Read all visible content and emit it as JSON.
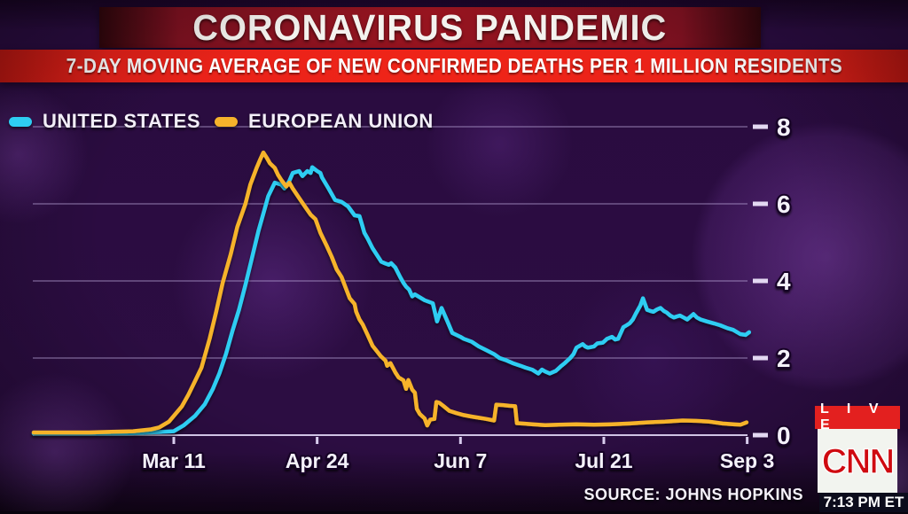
{
  "header": {
    "title": "CORONAVIRUS PANDEMIC",
    "subtitle": "7-DAY MOVING AVERAGE OF NEW CONFIRMED DEATHS PER 1 MILLION RESIDENTS"
  },
  "legend": [
    {
      "label": "UNITED STATES",
      "color": "#2ecdf2"
    },
    {
      "label": "EUROPEAN UNION",
      "color": "#f6b32b"
    }
  ],
  "chart_data": {
    "type": "line",
    "title": "7-day moving average of new confirmed deaths per 1 million residents",
    "x_axis": {
      "note": "x values are days relative to Mar 11",
      "domain_days": [
        -43,
        177
      ],
      "tick_days": [
        0,
        44,
        88,
        132,
        176
      ],
      "tick_labels": [
        "Mar 11",
        "Apr 24",
        "Jun 7",
        "Jul 21",
        "Sep 3"
      ]
    },
    "y_axis": {
      "ticks": [
        0,
        2,
        4,
        6,
        8
      ],
      "range": [
        0,
        8
      ],
      "grid": true
    },
    "legend_position": "top-left",
    "series": [
      {
        "name": "UNITED STATES",
        "color": "#2ecdf2",
        "points": [
          [
            -43,
            0.04
          ],
          [
            -26,
            0.04
          ],
          [
            -12,
            0.05
          ],
          [
            0,
            0.1
          ],
          [
            3,
            0.25
          ],
          [
            6.5,
            0.5
          ],
          [
            9.5,
            0.8
          ],
          [
            12,
            1.2
          ],
          [
            14,
            1.6
          ],
          [
            16,
            2.1
          ],
          [
            18,
            2.7
          ],
          [
            20,
            3.25
          ],
          [
            22,
            3.9
          ],
          [
            24,
            4.6
          ],
          [
            26,
            5.3
          ],
          [
            28,
            5.9
          ],
          [
            29,
            6.2
          ],
          [
            31,
            6.55
          ],
          [
            33,
            6.5
          ],
          [
            34,
            6.4
          ],
          [
            35.5,
            6.6
          ],
          [
            36.5,
            6.8
          ],
          [
            38.5,
            6.85
          ],
          [
            39.5,
            6.72
          ],
          [
            41,
            6.85
          ],
          [
            42,
            6.8
          ],
          [
            42.5,
            6.95
          ],
          [
            44,
            6.85
          ],
          [
            45,
            6.8
          ],
          [
            45.5,
            6.68
          ],
          [
            47.5,
            6.4
          ],
          [
            49.5,
            6.1
          ],
          [
            51.5,
            6.05
          ],
          [
            53.5,
            5.93
          ],
          [
            55.5,
            5.7
          ],
          [
            57,
            5.68
          ],
          [
            57.8,
            5.45
          ],
          [
            58.5,
            5.25
          ],
          [
            59.5,
            5.1
          ],
          [
            61,
            4.85
          ],
          [
            63.7,
            4.5
          ],
          [
            65,
            4.45
          ],
          [
            66,
            4.42
          ],
          [
            66.7,
            4.46
          ],
          [
            68,
            4.35
          ],
          [
            69.5,
            4.1
          ],
          [
            70.5,
            3.95
          ],
          [
            71.3,
            3.85
          ],
          [
            72.2,
            3.78
          ],
          [
            73.2,
            3.6
          ],
          [
            74,
            3.65
          ],
          [
            76,
            3.55
          ],
          [
            77,
            3.5
          ],
          [
            79.5,
            3.42
          ],
          [
            80.8,
            2.95
          ],
          [
            82.2,
            3.3
          ],
          [
            84,
            2.95
          ],
          [
            85.5,
            2.65
          ],
          [
            88,
            2.55
          ],
          [
            89,
            2.5
          ],
          [
            91.5,
            2.42
          ],
          [
            93.6,
            2.3
          ],
          [
            96,
            2.2
          ],
          [
            98.3,
            2.1
          ],
          [
            100,
            2.0
          ],
          [
            101.8,
            1.95
          ],
          [
            104,
            1.87
          ],
          [
            106.4,
            1.8
          ],
          [
            108,
            1.75
          ],
          [
            110,
            1.7
          ],
          [
            111.9,
            1.6
          ],
          [
            113,
            1.7
          ],
          [
            114,
            1.65
          ],
          [
            115.4,
            1.6
          ],
          [
            117.3,
            1.67
          ],
          [
            119,
            1.8
          ],
          [
            120,
            1.87
          ],
          [
            121.7,
            2.0
          ],
          [
            122.7,
            2.1
          ],
          [
            123.6,
            2.27
          ],
          [
            125.5,
            2.36
          ],
          [
            126.3,
            2.3
          ],
          [
            127.1,
            2.27
          ],
          [
            129,
            2.3
          ],
          [
            130,
            2.38
          ],
          [
            131.7,
            2.4
          ],
          [
            133,
            2.5
          ],
          [
            134.5,
            2.55
          ],
          [
            135.5,
            2.48
          ],
          [
            136.4,
            2.5
          ],
          [
            138,
            2.8
          ],
          [
            139,
            2.85
          ],
          [
            139.9,
            2.9
          ],
          [
            140.9,
            3.0
          ],
          [
            141.8,
            3.15
          ],
          [
            143.2,
            3.36
          ],
          [
            144,
            3.55
          ],
          [
            145.3,
            3.25
          ],
          [
            146.3,
            3.22
          ],
          [
            147.2,
            3.2
          ],
          [
            148.3,
            3.26
          ],
          [
            149.4,
            3.3
          ],
          [
            150.4,
            3.22
          ],
          [
            151.3,
            3.18
          ],
          [
            152.4,
            3.1
          ],
          [
            153.5,
            3.05
          ],
          [
            154.5,
            3.08
          ],
          [
            155.4,
            3.1
          ],
          [
            156.5,
            3.05
          ],
          [
            157.6,
            3.0
          ],
          [
            159.5,
            3.14
          ],
          [
            160.6,
            3.05
          ],
          [
            161.7,
            3.0
          ],
          [
            163.6,
            2.95
          ],
          [
            165.8,
            2.9
          ],
          [
            167.7,
            2.85
          ],
          [
            169.8,
            2.78
          ],
          [
            171.7,
            2.73
          ],
          [
            173.9,
            2.62
          ],
          [
            175.5,
            2.6
          ],
          [
            176.6,
            2.67
          ]
        ]
      },
      {
        "name": "EUROPEAN UNION",
        "color": "#f6b32b",
        "points": [
          [
            -43,
            0.07
          ],
          [
            -26,
            0.07
          ],
          [
            -12.5,
            0.1
          ],
          [
            -7,
            0.15
          ],
          [
            -4.5,
            0.2
          ],
          [
            -1.5,
            0.35
          ],
          [
            0,
            0.5
          ],
          [
            2.5,
            0.75
          ],
          [
            4.5,
            1.05
          ],
          [
            6.5,
            1.4
          ],
          [
            8.5,
            1.75
          ],
          [
            11,
            2.5
          ],
          [
            13,
            3.2
          ],
          [
            15,
            3.95
          ],
          [
            17.5,
            4.7
          ],
          [
            19.5,
            5.4
          ],
          [
            22,
            6.0
          ],
          [
            23.5,
            6.5
          ],
          [
            25.5,
            6.95
          ],
          [
            26.5,
            7.15
          ],
          [
            27.5,
            7.33
          ],
          [
            28.5,
            7.2
          ],
          [
            29.5,
            7.05
          ],
          [
            31,
            6.93
          ],
          [
            32,
            6.75
          ],
          [
            33,
            6.62
          ],
          [
            34.5,
            6.45
          ],
          [
            35.5,
            6.55
          ],
          [
            36.5,
            6.4
          ],
          [
            38.5,
            6.15
          ],
          [
            40.5,
            5.9
          ],
          [
            42,
            5.72
          ],
          [
            43.5,
            5.6
          ],
          [
            45,
            5.25
          ],
          [
            47,
            4.9
          ],
          [
            48.5,
            4.62
          ],
          [
            50,
            4.3
          ],
          [
            51.5,
            4.1
          ],
          [
            53,
            3.77
          ],
          [
            54,
            3.55
          ],
          [
            55.5,
            3.4
          ],
          [
            56,
            3.2
          ],
          [
            57,
            3.0
          ],
          [
            58,
            2.87
          ],
          [
            59.5,
            2.6
          ],
          [
            61,
            2.32
          ],
          [
            62.5,
            2.16
          ],
          [
            63.5,
            2.05
          ],
          [
            65,
            1.93
          ],
          [
            65.5,
            1.8
          ],
          [
            66.5,
            1.87
          ],
          [
            68,
            1.63
          ],
          [
            69,
            1.5
          ],
          [
            70.5,
            1.42
          ],
          [
            71.3,
            1.2
          ],
          [
            72,
            1.43
          ],
          [
            73.2,
            1.18
          ],
          [
            74,
            1.1
          ],
          [
            74.6,
            0.68
          ],
          [
            75.5,
            0.55
          ],
          [
            77,
            0.43
          ],
          [
            77.8,
            0.25
          ],
          [
            78.7,
            0.4
          ],
          [
            80,
            0.42
          ],
          [
            80.6,
            0.86
          ],
          [
            81.5,
            0.84
          ],
          [
            82.7,
            0.76
          ],
          [
            84.6,
            0.63
          ],
          [
            86.8,
            0.57
          ],
          [
            89,
            0.52
          ],
          [
            91.5,
            0.48
          ],
          [
            93.6,
            0.45
          ],
          [
            95.8,
            0.42
          ],
          [
            98.3,
            0.38
          ],
          [
            99,
            0.79
          ],
          [
            101,
            0.78
          ],
          [
            103,
            0.76
          ],
          [
            104.8,
            0.75
          ],
          [
            105.3,
            0.31
          ],
          [
            107,
            0.3
          ],
          [
            110,
            0.28
          ],
          [
            114,
            0.26
          ],
          [
            118,
            0.27
          ],
          [
            123.6,
            0.28
          ],
          [
            129,
            0.27
          ],
          [
            134.5,
            0.28
          ],
          [
            139.9,
            0.3
          ],
          [
            145.3,
            0.33
          ],
          [
            150.8,
            0.35
          ],
          [
            156.2,
            0.38
          ],
          [
            160.3,
            0.37
          ],
          [
            164.4,
            0.35
          ],
          [
            168.5,
            0.3
          ],
          [
            171.7,
            0.28
          ],
          [
            173.9,
            0.27
          ],
          [
            175.8,
            0.33
          ]
        ]
      }
    ]
  },
  "footer": {
    "source": "SOURCE: JOHNS HOPKINS"
  },
  "cnn": {
    "live": "L I V E",
    "logo": "CNN",
    "time": "7:13 PM ET"
  },
  "colors": {
    "title_banner": "#97141f",
    "subtitle_banner": "#ef2418",
    "background": "#2a0c40",
    "grid": "#b9a6d8",
    "us_line": "#2ecdf2",
    "eu_line": "#f6b32b"
  }
}
